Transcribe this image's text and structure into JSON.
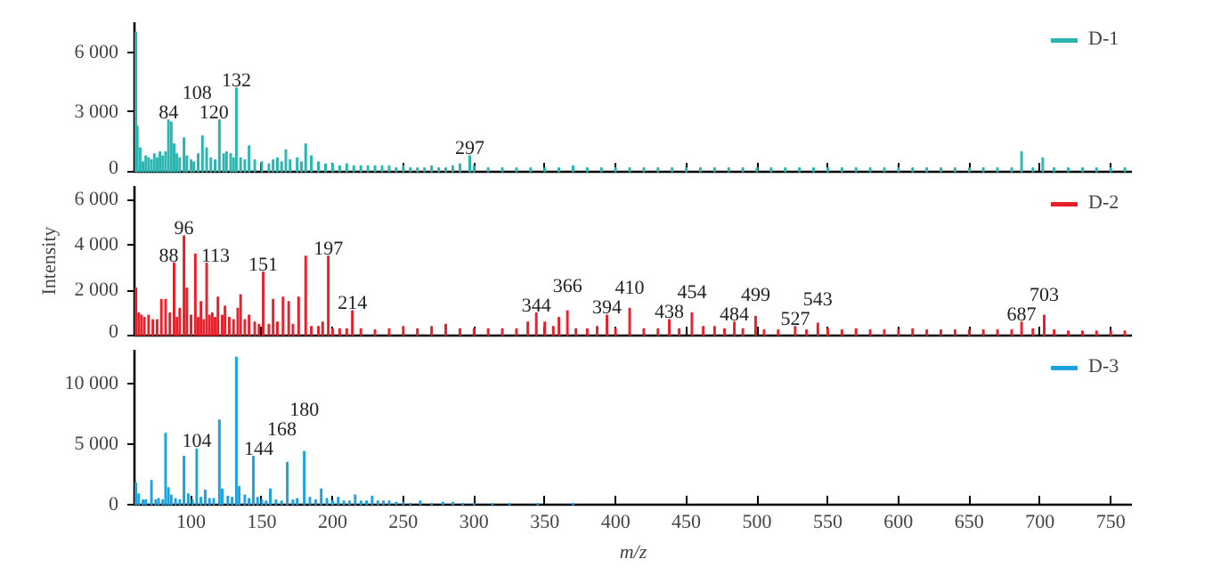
{
  "chart_data": [
    {
      "type": "bar",
      "x": [
        61,
        62,
        64,
        66,
        68,
        70,
        72,
        74,
        76,
        78,
        80,
        82,
        84,
        86,
        88,
        90,
        92,
        95,
        97,
        100,
        102,
        105,
        108,
        111,
        114,
        117,
        120,
        123,
        125,
        128,
        130,
        132,
        135,
        138,
        141,
        145,
        150,
        155,
        158,
        161,
        164,
        167,
        170,
        175,
        178,
        181,
        185,
        190,
        195,
        200,
        205,
        210,
        215,
        220,
        225,
        230,
        235,
        240,
        245,
        250,
        255,
        260,
        265,
        270,
        275,
        280,
        285,
        290,
        297,
        300,
        310,
        320,
        330,
        340,
        350,
        360,
        370,
        380,
        390,
        400,
        410,
        420,
        430,
        440,
        450,
        460,
        470,
        480,
        490,
        500,
        510,
        520,
        530,
        540,
        550,
        560,
        570,
        580,
        590,
        600,
        610,
        620,
        630,
        640,
        650,
        660,
        670,
        680,
        687,
        695,
        702,
        710,
        720,
        730,
        740,
        750,
        760
      ],
      "series": [
        {
          "name": "D-1",
          "color": "#2ab5b0",
          "values": [
            7000,
            2300,
            1200,
            500,
            800,
            700,
            600,
            900,
            700,
            1000,
            800,
            1000,
            2600,
            2500,
            1400,
            900,
            700,
            1700,
            800,
            600,
            500,
            900,
            1800,
            1200,
            700,
            600,
            2600,
            900,
            1000,
            900,
            700,
            4200,
            700,
            600,
            1300,
            600,
            500,
            400,
            600,
            700,
            500,
            1100,
            600,
            700,
            500,
            1400,
            800,
            500,
            400,
            400,
            300,
            400,
            300,
            300,
            300,
            300,
            300,
            300,
            200,
            300,
            200,
            200,
            200,
            300,
            200,
            200,
            300,
            400,
            800,
            300,
            200,
            200,
            200,
            200,
            200,
            200,
            300,
            200,
            200,
            200,
            200,
            200,
            200,
            200,
            200,
            200,
            200,
            200,
            200,
            200,
            200,
            200,
            200,
            200,
            200,
            200,
            200,
            200,
            200,
            200,
            200,
            200,
            200,
            200,
            200,
            200,
            200,
            200,
            1000,
            200,
            700,
            200,
            200,
            200,
            200,
            200,
            200
          ]
        }
      ],
      "xlim": [
        60,
        765
      ],
      "xticks": [
        100,
        150,
        200,
        250,
        300,
        350,
        400,
        450,
        500,
        550,
        600,
        650,
        700,
        750
      ],
      "ylim": [
        0,
        7500
      ],
      "yticks": [
        0,
        {
          "value": 3000,
          "label": "3 000"
        },
        {
          "value": 6000,
          "label": "6 000"
        }
      ],
      "tick_labels": "y",
      "legend": "top right",
      "grid": false,
      "annotations": [
        {
          "text": "84",
          "x": 84,
          "y": 2600
        },
        {
          "text": "108",
          "x": 108,
          "y": 1800
        },
        {
          "text": "120",
          "x": 120,
          "y": 2600
        },
        {
          "text": "132",
          "x": 132,
          "y": 4200
        },
        {
          "text": "297",
          "x": 297,
          "y": 800
        }
      ]
    },
    {
      "type": "bar",
      "x": [
        61,
        63,
        65,
        67,
        70,
        73,
        76,
        79,
        82,
        85,
        88,
        90,
        92,
        95,
        97,
        100,
        103,
        105,
        107,
        109,
        111,
        113,
        115,
        117,
        119,
        122,
        124,
        127,
        130,
        133,
        135,
        138,
        141,
        145,
        148,
        151,
        155,
        158,
        161,
        165,
        169,
        172,
        176,
        181,
        185,
        190,
        193,
        197,
        200,
        205,
        210,
        214,
        220,
        230,
        240,
        250,
        260,
        270,
        280,
        290,
        300,
        310,
        320,
        330,
        338,
        344,
        350,
        356,
        360,
        366,
        372,
        380,
        387,
        394,
        400,
        410,
        420,
        430,
        438,
        445,
        454,
        462,
        470,
        477,
        484,
        490,
        499,
        505,
        515,
        527,
        535,
        543,
        550,
        560,
        570,
        580,
        590,
        600,
        610,
        620,
        630,
        640,
        650,
        660,
        670,
        680,
        687,
        695,
        703,
        710,
        720,
        730,
        740,
        750,
        760
      ],
      "series": [
        {
          "name": "D-2",
          "color": "#e8202a",
          "values": [
            2100,
            1000,
            900,
            800,
            900,
            700,
            700,
            1600,
            1600,
            1000,
            3200,
            800,
            1200,
            4400,
            2100,
            900,
            3600,
            800,
            1500,
            700,
            3200,
            900,
            1000,
            800,
            1700,
            900,
            1300,
            800,
            700,
            1200,
            1800,
            700,
            900,
            600,
            500,
            2800,
            500,
            1600,
            600,
            1700,
            1500,
            500,
            1700,
            3500,
            400,
            400,
            600,
            3500,
            300,
            300,
            300,
            1100,
            300,
            250,
            300,
            400,
            300,
            400,
            500,
            300,
            300,
            300,
            300,
            300,
            600,
            1000,
            600,
            400,
            800,
            1100,
            300,
            300,
            400,
            900,
            300,
            1200,
            300,
            300,
            700,
            300,
            1000,
            400,
            400,
            300,
            600,
            300,
            850,
            250,
            250,
            400,
            250,
            550,
            300,
            250,
            300,
            250,
            250,
            250,
            300,
            250,
            250,
            250,
            250,
            250,
            250,
            250,
            600,
            300,
            900,
            250,
            200,
            200,
            200,
            200,
            200
          ]
        }
      ],
      "xlim": [
        60,
        765
      ],
      "xticks": [
        100,
        150,
        200,
        250,
        300,
        350,
        400,
        450,
        500,
        550,
        600,
        650,
        700,
        750
      ],
      "ylim": [
        0,
        6600
      ],
      "yticks": [
        0,
        {
          "value": 2000,
          "label": "2 000"
        },
        {
          "value": 4000,
          "label": "4 000"
        },
        {
          "value": 6000,
          "label": "6 000"
        }
      ],
      "ylabel": "Intensity",
      "tick_labels": "y",
      "legend": "top right",
      "grid": false,
      "annotations": [
        {
          "text": "88",
          "x": 88,
          "y": 3200
        },
        {
          "text": "96",
          "x": 95,
          "y": 4400
        },
        {
          "text": "113",
          "x": 111,
          "y": 3200
        },
        {
          "text": "151",
          "x": 151,
          "y": 2800
        },
        {
          "text": "197",
          "x": 197,
          "y": 3500
        },
        {
          "text": "214",
          "x": 214,
          "y": 1100
        },
        {
          "text": "344",
          "x": 344,
          "y": 1000
        },
        {
          "text": "366",
          "x": 366,
          "y": 1100
        },
        {
          "text": "394",
          "x": 394,
          "y": 900
        },
        {
          "text": "410",
          "x": 410,
          "y": 1200
        },
        {
          "text": "438",
          "x": 438,
          "y": 700
        },
        {
          "text": "454",
          "x": 454,
          "y": 1000
        },
        {
          "text": "484",
          "x": 484,
          "y": 600
        },
        {
          "text": "499",
          "x": 499,
          "y": 850
        },
        {
          "text": "527",
          "x": 527,
          "y": 400
        },
        {
          "text": "543",
          "x": 543,
          "y": 550
        },
        {
          "text": "687",
          "x": 687,
          "y": 600
        },
        {
          "text": "703",
          "x": 703,
          "y": 900
        }
      ]
    },
    {
      "type": "bar",
      "x": [
        61,
        63,
        66,
        68,
        72,
        75,
        77,
        80,
        82,
        84,
        86,
        89,
        92,
        95,
        98,
        101,
        104,
        107,
        110,
        113,
        116,
        120,
        122,
        126,
        129,
        132,
        134,
        138,
        141,
        144,
        147,
        150,
        153,
        156,
        160,
        164,
        168,
        172,
        175,
        180,
        184,
        188,
        192,
        196,
        200,
        204,
        208,
        212,
        216,
        220,
        224,
        228,
        232,
        236,
        240,
        245,
        250,
        255,
        262,
        270,
        278,
        285,
        292,
        300,
        313,
        325,
        345,
        370
      ],
      "series": [
        {
          "name": "D-3",
          "color": "#1aa3e0",
          "values": [
            1800,
            900,
            400,
            400,
            2000,
            400,
            500,
            400,
            5900,
            1400,
            800,
            500,
            400,
            4000,
            900,
            400,
            4600,
            600,
            1200,
            500,
            500,
            7000,
            1300,
            700,
            600,
            12200,
            1500,
            800,
            500,
            4000,
            600,
            400,
            300,
            1300,
            400,
            300,
            3500,
            400,
            500,
            4400,
            600,
            400,
            1300,
            500,
            300,
            600,
            300,
            300,
            800,
            300,
            300,
            700,
            300,
            300,
            300,
            200,
            200,
            100,
            300,
            100,
            200,
            200,
            100,
            100,
            100,
            100,
            100,
            100
          ]
        }
      ],
      "xlim": [
        60,
        765
      ],
      "xticks": [
        100,
        150,
        200,
        250,
        300,
        350,
        400,
        450,
        500,
        550,
        600,
        650,
        700,
        750
      ],
      "ylim": [
        0,
        12800
      ],
      "yticks": [
        0,
        {
          "value": 5000,
          "label": "5 000"
        },
        {
          "value": 10000,
          "label": "10 000"
        }
      ],
      "xlabel": "m/z",
      "legend": "top right",
      "grid": false,
      "annotations": [
        {
          "text": "104",
          "x": 104,
          "y": 4600
        },
        {
          "text": "144",
          "x": 144,
          "y": 4000
        },
        {
          "text": "168",
          "x": 168,
          "y": 3500
        },
        {
          "text": "180",
          "x": 180,
          "y": 4400
        }
      ]
    }
  ]
}
